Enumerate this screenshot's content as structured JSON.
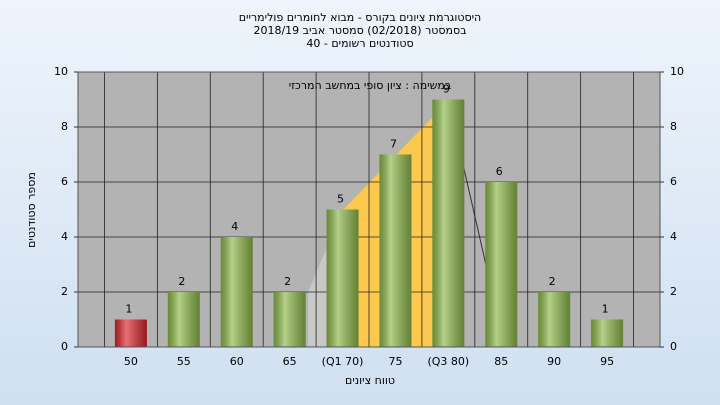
{
  "chart_data": {
    "type": "bar",
    "title": [
      "היסטוגרמת ציונים בקורס - מבוא לחומרים פולימריים",
      "בסמסטר  (02/2018)  סמסטר אביב 2018/19",
      "סטודנטים רשומים - 40"
    ],
    "annotation": "במשימה : ציון סופי במחשב המרכזי",
    "x_label": "טווח ציונים",
    "y_label": "מספר סטודנטים",
    "categories": [
      "50",
      "55",
      "60",
      "65",
      "(Q1 70)",
      "75",
      "(Q3 80)",
      "85",
      "90",
      "95"
    ],
    "values": [
      1,
      2,
      4,
      2,
      5,
      7,
      9,
      6,
      2,
      1
    ],
    "colors": [
      "#d9262b",
      "#8db84a",
      "#8db84a",
      "#8db84a",
      "#8db84a",
      "#8db84a",
      "#8db84a",
      "#8db84a",
      "#8db84a",
      "#8db84a"
    ],
    "ylim": [
      0,
      10
    ],
    "yticks": [
      0,
      2,
      4,
      6,
      8,
      10
    ],
    "y2lim": [
      0,
      10
    ],
    "y2ticks": [
      0,
      2,
      4,
      6,
      8,
      10
    ],
    "grid": true
  }
}
